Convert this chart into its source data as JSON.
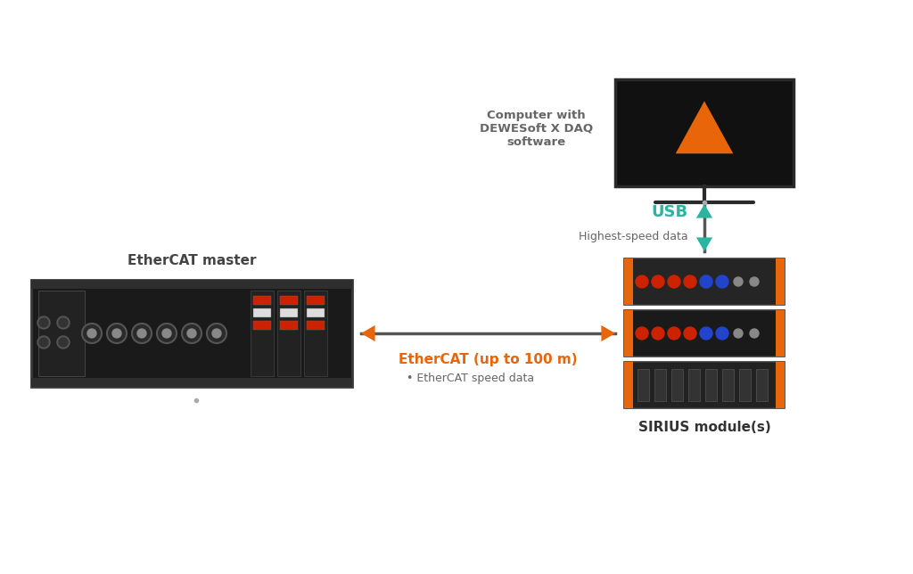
{
  "bg_color": "#ffffff",
  "usb_label": "USB",
  "usb_sublabel": "Highest-speed data",
  "usb_label_color": "#2ab5a0",
  "usb_sublabel_color": "#666666",
  "ethercat_label": "EtherCAT (up to 100 m)",
  "ethercat_sublabel": "EtherCAT speed data",
  "ethercat_color": "#e8650a",
  "ethercat_sublabel_color": "#666666",
  "computer_label": "Computer with\nDEWESoft X DAQ\nsoftware",
  "computer_label_color": "#666666",
  "ethercat_master_label": "EtherCAT master",
  "ethercat_master_color": "#444444",
  "sirius_label": "SIRIUS module(s)",
  "sirius_color": "#333333",
  "monitor_frame_color": "#2a2a2a",
  "monitor_screen_color": "#111111",
  "arrow_usb_color": "#2ab5a0",
  "arrow_ethercat_color": "#e8650a",
  "arrow_line_color": "#555555",
  "triangle_color": "#e8650a",
  "orange": "#e8650a",
  "rack_body": "#1a1a1a",
  "rack_edge": "#444444",
  "sirius_body": "#1e1e1e"
}
